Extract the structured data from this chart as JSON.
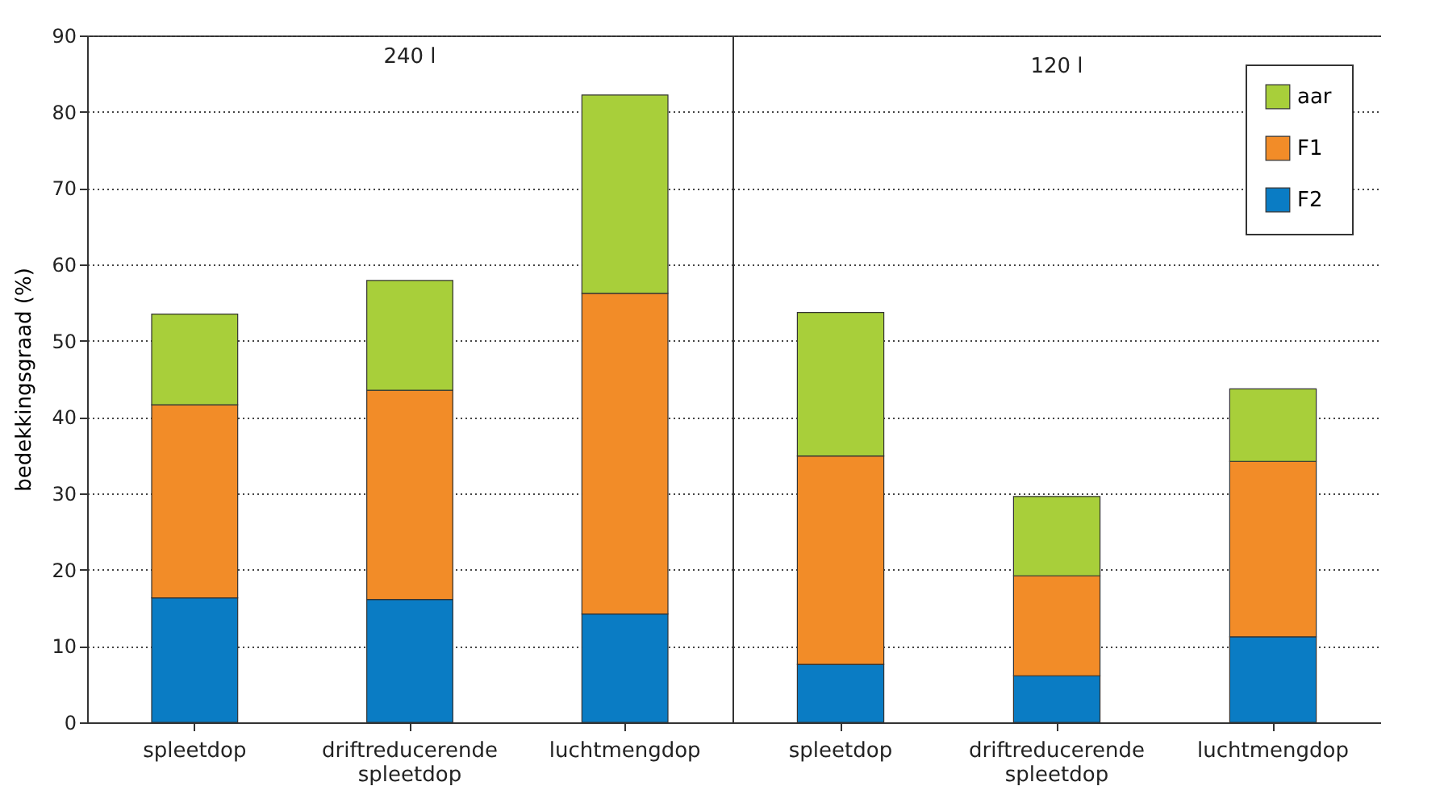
{
  "chart_data": [
    {
      "type": "bar",
      "title": "240 l",
      "ylabel": "bedekkingsgraad (%)",
      "stacked": true,
      "categories": [
        "spleetdop",
        "driftreducerende spleetdop",
        "luchtmengdop"
      ],
      "series": [
        {
          "color": "#0a7cc4",
          "values": [
            16.3,
            16.1,
            14.2
          ]
        },
        {
          "color": "#f28c28",
          "values": [
            25.3,
            27.4,
            42.0
          ]
        },
        {
          "color": "#a8cf3a",
          "values": [
            11.9,
            14.4,
            26.0
          ]
        }
      ],
      "ylim": [
        0,
        90
      ],
      "yticks": [
        0,
        10,
        20,
        30,
        40,
        50,
        60,
        70,
        80,
        90
      ],
      "grid": "y"
    },
    {
      "type": "bar",
      "title": "120 l",
      "stacked": true,
      "categories": [
        "spleetdop",
        "driftreducerende spleetdop",
        "luchtmengdop"
      ],
      "series": [
        {
          "name": "F2",
          "color": "#0a7cc4",
          "values": [
            7.6,
            6.1,
            11.2
          ]
        },
        {
          "name": "F1",
          "color": "#f28c28",
          "values": [
            27.3,
            13.1,
            23.0
          ]
        },
        {
          "name": "aar",
          "color": "#a8cf3a",
          "values": [
            18.8,
            10.4,
            9.5
          ]
        }
      ],
      "ylim": [
        0,
        90
      ],
      "yticks": [
        0,
        10,
        20,
        30,
        40,
        50,
        60,
        70,
        80,
        90
      ],
      "grid": "y",
      "tick_labels": "x",
      "legend": "top right"
    }
  ]
}
